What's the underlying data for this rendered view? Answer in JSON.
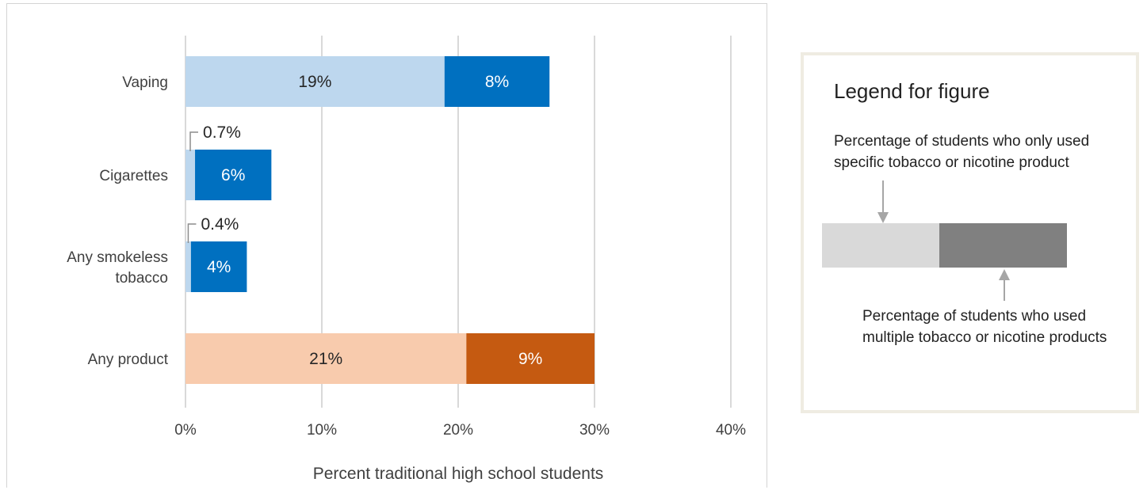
{
  "chart_data": {
    "type": "bar",
    "orientation": "horizontal",
    "stacked": true,
    "categories": [
      "Vaping",
      "Cigarettes",
      "Any smokeless tobacco",
      "Any product"
    ],
    "category_lines": [
      [
        "Vaping"
      ],
      [
        "Cigarettes"
      ],
      [
        "Any smokeless",
        "tobacco"
      ],
      [
        "Any product"
      ]
    ],
    "series": [
      {
        "values": [
          19,
          0.7,
          0.4,
          20.6
        ],
        "labels": [
          "19%",
          "0.7%",
          "0.4%",
          "21%"
        ],
        "colors": [
          "#bdd7ee",
          "#bdd7ee",
          "#bdd7ee",
          "#f8cbad"
        ]
      },
      {
        "values": [
          7.7,
          5.6,
          4.1,
          9.4
        ],
        "labels": [
          "8%",
          "6%",
          "4%",
          "9%"
        ],
        "colors": [
          "#0070c0",
          "#0070c0",
          "#0070c0",
          "#c55a11"
        ]
      }
    ],
    "xlim": [
      0,
      40
    ],
    "x_ticks": [
      "0%",
      "10%",
      "20%",
      "30%",
      "40%"
    ],
    "x_tick_values": [
      0,
      10,
      20,
      30,
      40
    ],
    "xlabel": "Percent traditional high school students",
    "ylabel": "",
    "grid": "vertical",
    "legend": "right"
  },
  "legend": {
    "title": "Legend for figure",
    "only_text": "Percentage of students who only used specific tobacco or nicotine product",
    "multi_text": "Percentage of students who used multiple tobacco or nicotine products",
    "only_color": "#d9d9d9",
    "multi_color": "#808080"
  }
}
